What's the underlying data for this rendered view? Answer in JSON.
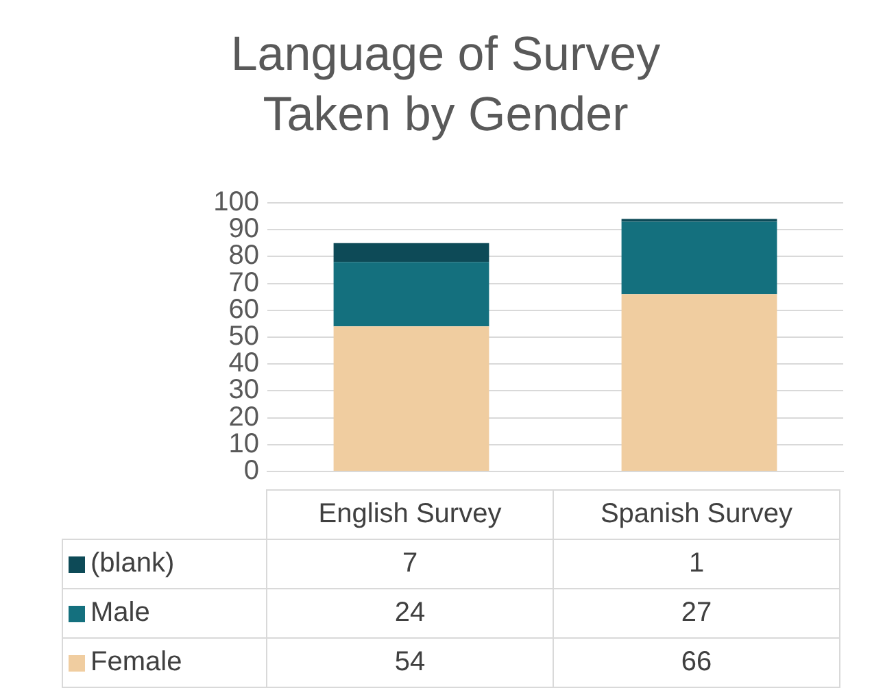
{
  "chart_data": {
    "type": "bar",
    "title": "Language of Survey Taken by Gender",
    "categories": [
      "English Survey",
      "Spanish Survey"
    ],
    "stacked": true,
    "series": [
      {
        "name": "Female",
        "color": "#f0cda0",
        "values": [
          54,
          66
        ]
      },
      {
        "name": "Male",
        "color": "#14707e",
        "values": [
          24,
          27
        ]
      },
      {
        "name": "(blank)",
        "color": "#0d4a57",
        "values": [
          7,
          1
        ]
      }
    ],
    "ylim": [
      0,
      100
    ],
    "yticks": [
      0,
      10,
      20,
      30,
      40,
      50,
      60,
      70,
      80,
      90,
      100
    ],
    "grid": "y",
    "legend": "bottom",
    "data_labels": true
  }
}
